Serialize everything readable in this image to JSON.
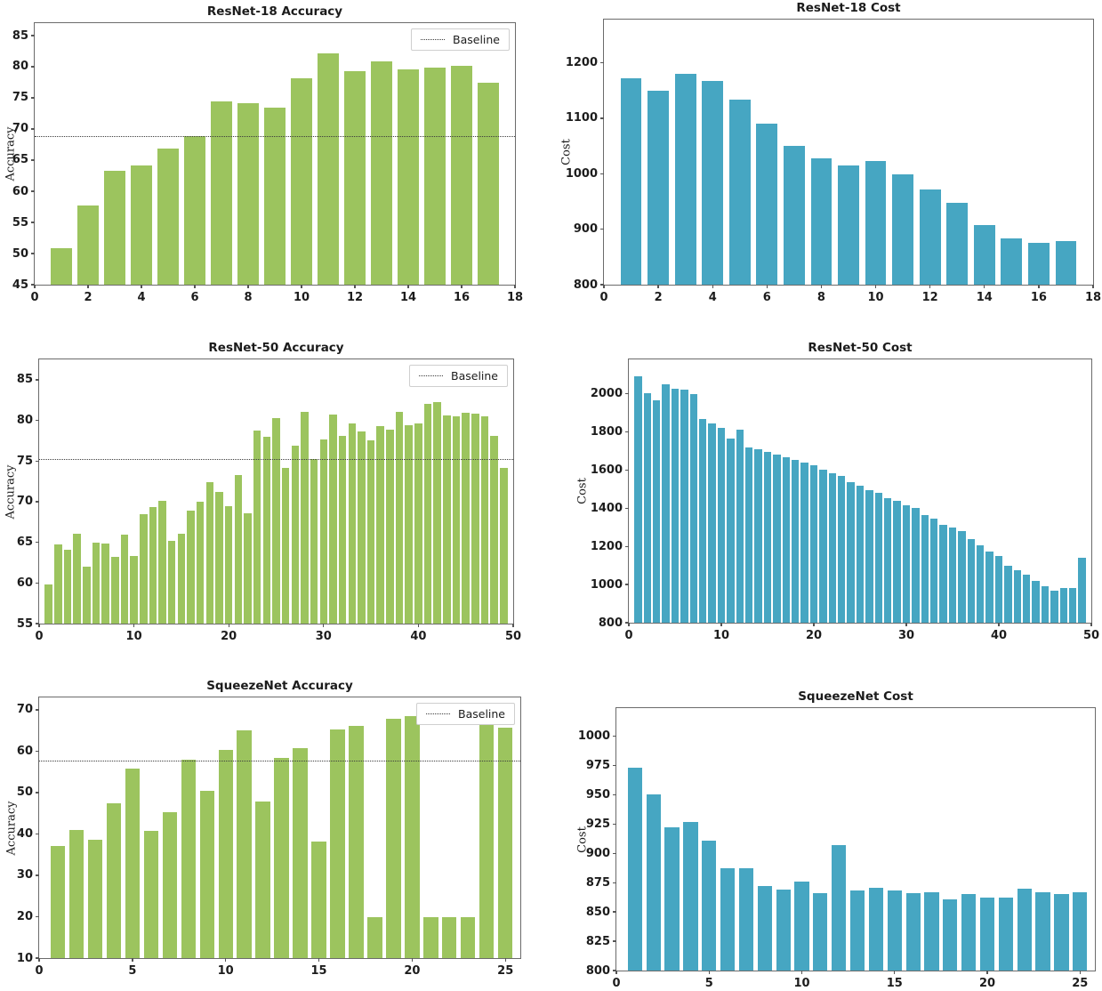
{
  "colors": {
    "accuracy_bar": "#9cc45e",
    "cost_bar": "#46a6c2",
    "baseline_line": "#3c3c3c",
    "axis": "#555555",
    "text": "#1c1c1c"
  },
  "chart_data": [
    {
      "type": "bar",
      "title": "ResNet-18 Accuracy",
      "xlabel": "",
      "ylabel": "Accuracy",
      "color_key": "accuracy_bar",
      "x_start": 1,
      "bar_width": 0.78,
      "values": [
        50.9,
        57.7,
        63.3,
        64.2,
        66.8,
        68.9,
        74.4,
        74.2,
        73.5,
        78.2,
        82.2,
        79.3,
        80.9,
        79.6,
        79.8,
        80.1,
        77.5
      ],
      "baseline": 68.8,
      "legend_label": "Baseline",
      "ylim": [
        45,
        87
      ],
      "yticks": [
        45,
        50,
        55,
        60,
        65,
        70,
        75,
        80,
        85
      ],
      "xlim": [
        0,
        18
      ],
      "xticks": [
        0,
        2,
        4,
        6,
        8,
        10,
        12,
        14,
        16,
        18
      ],
      "grid": false,
      "legend_position": "upper right"
    },
    {
      "type": "bar",
      "title": "ResNet-18 Cost",
      "xlabel": "",
      "ylabel": "Cost",
      "color_key": "cost_bar",
      "x_start": 1,
      "bar_width": 0.78,
      "values": [
        1172,
        1150,
        1180,
        1168,
        1133,
        1090,
        1051,
        1027,
        1015,
        1023,
        999,
        971,
        948,
        908,
        883,
        875,
        878
      ],
      "ylim": [
        800,
        1278
      ],
      "yticks": [
        800,
        900,
        1000,
        1100,
        1200
      ],
      "xlim": [
        0,
        18
      ],
      "xticks": [
        0,
        2,
        4,
        6,
        8,
        10,
        12,
        14,
        16,
        18
      ],
      "grid": false
    },
    {
      "type": "bar",
      "title": "ResNet-50 Accuracy",
      "xlabel": "",
      "ylabel": "Accuracy",
      "color_key": "accuracy_bar",
      "x_start": 1,
      "bar_width": 0.8,
      "values": [
        59.8,
        64.7,
        64.1,
        66.1,
        62.0,
        65.0,
        64.8,
        63.2,
        65.9,
        63.3,
        68.5,
        69.3,
        70.1,
        65.2,
        66.1,
        68.9,
        70.0,
        72.4,
        71.2,
        69.4,
        73.3,
        68.6,
        78.8,
        78.0,
        80.3,
        74.2,
        76.9,
        81.1,
        75.2,
        77.6,
        80.7,
        78.1,
        79.6,
        78.6,
        77.5,
        79.3,
        78.9,
        81.1,
        79.4,
        79.6,
        82.0,
        82.2,
        80.6,
        80.5,
        80.9,
        80.8,
        80.5,
        78.1,
        74.1
      ],
      "baseline": 75.2,
      "legend_label": "Baseline",
      "ylim": [
        55,
        87.5
      ],
      "yticks": [
        55,
        60,
        65,
        70,
        75,
        80,
        85
      ],
      "xlim": [
        0,
        50
      ],
      "xticks": [
        0,
        10,
        20,
        30,
        40,
        50
      ],
      "grid": false,
      "legend_position": "upper right"
    },
    {
      "type": "bar",
      "title": "ResNet-50 Cost",
      "xlabel": "",
      "ylabel": "Cost",
      "color_key": "cost_bar",
      "x_start": 1,
      "bar_width": 0.8,
      "values": [
        2090,
        2005,
        1965,
        2050,
        2025,
        2020,
        2000,
        1870,
        1845,
        1820,
        1765,
        1810,
        1720,
        1710,
        1695,
        1680,
        1665,
        1655,
        1640,
        1625,
        1600,
        1585,
        1570,
        1535,
        1520,
        1495,
        1480,
        1455,
        1440,
        1415,
        1400,
        1365,
        1345,
        1315,
        1300,
        1280,
        1240,
        1205,
        1175,
        1150,
        1100,
        1075,
        1050,
        1020,
        990,
        968,
        980,
        982,
        1140
      ],
      "ylim": [
        800,
        2180
      ],
      "yticks": [
        800,
        1000,
        1200,
        1400,
        1600,
        1800,
        2000
      ],
      "xlim": [
        0,
        50
      ],
      "xticks": [
        0,
        10,
        20,
        30,
        40,
        50
      ],
      "grid": false
    },
    {
      "type": "bar",
      "title": "SqueezeNet Accuracy",
      "xlabel": "",
      "ylabel": "Accuracy",
      "color_key": "accuracy_bar",
      "x_start": 1,
      "bar_width": 0.78,
      "values": [
        37.0,
        41.0,
        38.6,
        47.5,
        55.7,
        40.7,
        45.2,
        57.9,
        50.4,
        60.3,
        65.1,
        47.8,
        58.3,
        60.8,
        38.1,
        65.2,
        66.1,
        20.0,
        67.9,
        68.4,
        20.0,
        20.0,
        20.0,
        67.0,
        65.7
      ],
      "baseline": 57.8,
      "legend_label": "Baseline",
      "ylim": [
        10,
        73
      ],
      "yticks": [
        10,
        20,
        30,
        40,
        50,
        60,
        70
      ],
      "xlim": [
        0,
        25.8
      ],
      "xticks": [
        0,
        5,
        10,
        15,
        20,
        25
      ],
      "grid": false,
      "legend_position": "upper right"
    },
    {
      "type": "bar",
      "title": "SqueezeNet Cost",
      "xlabel": "",
      "ylabel": "Cost",
      "color_key": "cost_bar",
      "x_start": 1,
      "bar_width": 0.78,
      "values": [
        973,
        950,
        922,
        927,
        911,
        887,
        887,
        872,
        869,
        876,
        866,
        907,
        868,
        871,
        868,
        866,
        867,
        861,
        865,
        862,
        862,
        870,
        867,
        865,
        867
      ],
      "ylim": [
        800,
        1024
      ],
      "yticks": [
        800,
        825,
        850,
        875,
        900,
        925,
        950,
        975,
        1000
      ],
      "xlim": [
        0,
        25.8
      ],
      "xticks": [
        0,
        5,
        10,
        15,
        20,
        25
      ],
      "grid": false
    }
  ]
}
